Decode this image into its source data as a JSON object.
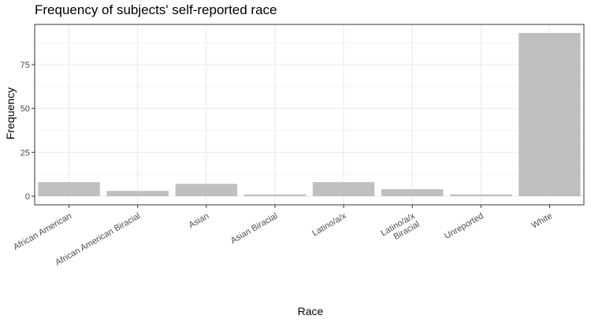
{
  "chart_data": {
    "type": "bar",
    "title": "Frequency of subjects' self-reported race",
    "xlabel": "Race",
    "ylabel": "Frequency",
    "categories": [
      "African American",
      "African American Biracial",
      "Asian",
      "Asian Biracial",
      "Latino/a/x",
      "Latino/a/x\nBiracial",
      "Unreported",
      "White"
    ],
    "values": [
      8,
      3,
      7,
      1,
      8,
      4,
      1,
      93
    ],
    "ylim": [
      0,
      97
    ],
    "yticks": [
      0,
      25,
      50,
      75
    ],
    "ytick_labels": [
      "0",
      "25",
      "50",
      "75"
    ],
    "grid": true,
    "legend": "none",
    "bar_color": "#bfbfbf",
    "grid_color": "#ebebeb",
    "panel_border_color": "#333333"
  }
}
